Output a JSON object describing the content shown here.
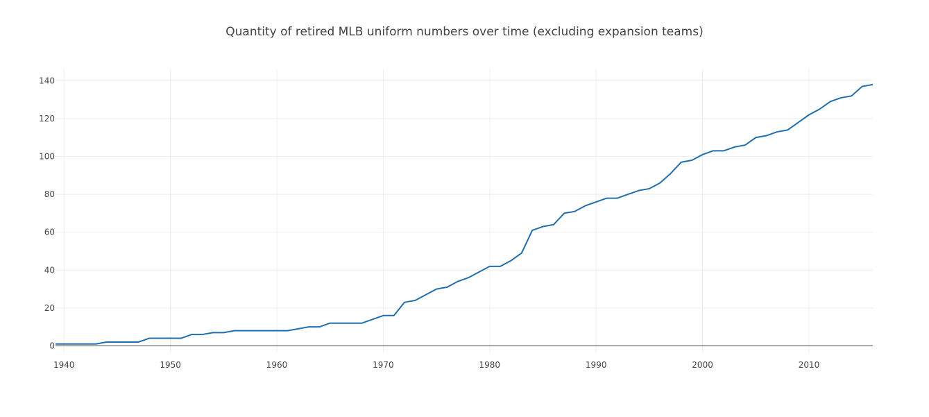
{
  "chart_data": {
    "type": "line",
    "title": "Quantity of retired MLB uniform numbers over time (excluding expansion teams)",
    "xlabel": "",
    "ylabel": "",
    "xlim": [
      1939.2,
      2016
    ],
    "ylim": [
      -3.5,
      146
    ],
    "x_ticks": [
      1940,
      1950,
      1960,
      1970,
      1980,
      1990,
      2000,
      2010
    ],
    "y_ticks": [
      0,
      20,
      40,
      60,
      80,
      100,
      120,
      140
    ],
    "grid": true,
    "legend": "none",
    "line_color": "#1f6fb0",
    "grid_color": "#eeeeee",
    "zero_line_color": "#444444",
    "series": [
      {
        "x": [
          1939,
          1940,
          1941,
          1942,
          1943,
          1944,
          1945,
          1946,
          1947,
          1948,
          1949,
          1950,
          1951,
          1952,
          1953,
          1954,
          1955,
          1956,
          1957,
          1958,
          1959,
          1960,
          1961,
          1962,
          1963,
          1964,
          1965,
          1966,
          1967,
          1968,
          1969,
          1970,
          1971,
          1972,
          1973,
          1974,
          1975,
          1976,
          1977,
          1978,
          1979,
          1980,
          1981,
          1982,
          1983,
          1984,
          1985,
          1986,
          1987,
          1988,
          1989,
          1990,
          1991,
          1992,
          1993,
          1994,
          1995,
          1996,
          1997,
          1998,
          1999,
          2000,
          2001,
          2002,
          2003,
          2004,
          2005,
          2006,
          2007,
          2008,
          2009,
          2010,
          2011,
          2012,
          2013,
          2014,
          2015,
          2016
        ],
        "y": [
          1,
          1,
          1,
          1,
          1,
          2,
          2,
          2,
          2,
          4,
          4,
          4,
          4,
          6,
          6,
          7,
          7,
          8,
          8,
          8,
          8,
          8,
          8,
          9,
          10,
          10,
          12,
          12,
          12,
          12,
          14,
          16,
          16,
          23,
          24,
          27,
          30,
          31,
          34,
          36,
          39,
          42,
          42,
          45,
          49,
          61,
          63,
          64,
          70,
          71,
          74,
          76,
          78,
          78,
          80,
          82,
          83,
          86,
          91,
          97,
          98,
          101,
          103,
          103,
          105,
          106,
          110,
          111,
          113,
          114,
          118,
          122,
          125,
          129,
          131,
          132,
          137,
          138
        ]
      }
    ]
  }
}
